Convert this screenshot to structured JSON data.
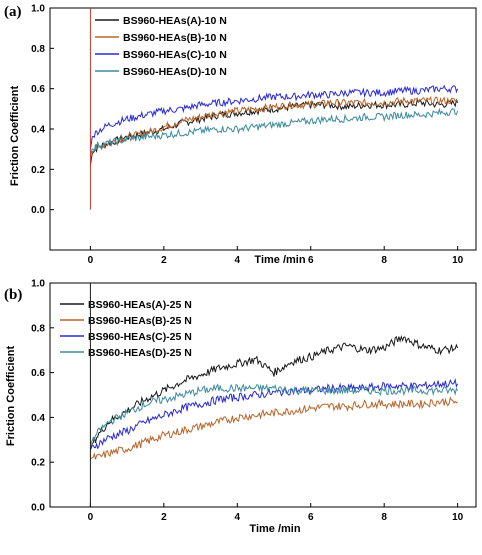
{
  "chart_data": [
    {
      "type": "line",
      "panel_label": "(a)",
      "xlabel": "Time /min",
      "ylabel": "Friction Coefficient",
      "xlim": [
        -1.1,
        10.5
      ],
      "ylim": [
        -0.2,
        1.0
      ],
      "xticks": [
        0,
        2,
        4,
        6,
        8,
        10
      ],
      "yticks": [
        0.0,
        0.2,
        0.4,
        0.6,
        0.8,
        1.0
      ],
      "legend_position": "top-center",
      "series": [
        {
          "name": "BS960-HEAs(A)-10 N",
          "color": "#1a1a1a",
          "x": [
            0,
            0.05,
            0.2,
            0.5,
            1,
            1.5,
            2,
            2.5,
            3,
            3.5,
            4,
            4.5,
            5,
            5.5,
            6,
            6.5,
            7,
            7.5,
            8,
            8.5,
            9,
            9.5,
            10
          ],
          "y": [
            0.22,
            0.28,
            0.31,
            0.33,
            0.36,
            0.38,
            0.4,
            0.43,
            0.45,
            0.47,
            0.48,
            0.49,
            0.5,
            0.51,
            0.52,
            0.52,
            0.51,
            0.52,
            0.52,
            0.52,
            0.53,
            0.52,
            0.53
          ]
        },
        {
          "name": "BS960-HEAs(B)-10 N",
          "color": "#b8652a",
          "x": [
            0,
            0.05,
            0.2,
            0.5,
            1,
            1.5,
            2,
            2.5,
            3,
            3.5,
            4,
            4.5,
            5,
            5.5,
            6,
            6.5,
            7,
            7.5,
            8,
            8.5,
            9,
            9.5,
            10
          ],
          "y": [
            0.25,
            0.29,
            0.31,
            0.33,
            0.36,
            0.38,
            0.41,
            0.44,
            0.46,
            0.48,
            0.49,
            0.5,
            0.51,
            0.52,
            0.52,
            0.53,
            0.53,
            0.53,
            0.53,
            0.54,
            0.54,
            0.54,
            0.54
          ]
        },
        {
          "name": "BS960-HEAs(C)-10 N",
          "color": "#2a2ad6",
          "x": [
            0,
            0.05,
            0.2,
            0.5,
            1,
            1.5,
            2,
            2.5,
            3,
            3.5,
            4,
            4.5,
            5,
            5.5,
            6,
            6.5,
            7,
            7.5,
            8,
            8.5,
            9,
            9.5,
            10
          ],
          "y": [
            0.3,
            0.36,
            0.39,
            0.42,
            0.45,
            0.47,
            0.49,
            0.5,
            0.52,
            0.53,
            0.54,
            0.55,
            0.56,
            0.56,
            0.57,
            0.57,
            0.58,
            0.58,
            0.58,
            0.59,
            0.59,
            0.6,
            0.6
          ]
        },
        {
          "name": "BS960-HEAs(D)-10 N",
          "color": "#3d8a9e",
          "x": [
            0,
            0.05,
            0.2,
            0.5,
            1,
            1.5,
            2,
            2.5,
            3,
            3.5,
            4,
            4.5,
            5,
            5.5,
            6,
            6.5,
            7,
            7.5,
            8,
            8.5,
            9,
            9.5,
            10
          ],
          "y": [
            0.28,
            0.3,
            0.32,
            0.33,
            0.35,
            0.36,
            0.37,
            0.38,
            0.39,
            0.4,
            0.4,
            0.41,
            0.42,
            0.43,
            0.44,
            0.45,
            0.45,
            0.46,
            0.46,
            0.47,
            0.47,
            0.48,
            0.49
          ]
        }
      ]
    },
    {
      "type": "line",
      "panel_label": "(b)",
      "xlabel": "Time /min",
      "ylabel": "Friction Coefficient",
      "xlim": [
        -1.1,
        10.5
      ],
      "ylim": [
        0.0,
        1.0
      ],
      "xticks": [
        0,
        2,
        4,
        6,
        8,
        10
      ],
      "yticks": [
        0.0,
        0.2,
        0.4,
        0.6,
        0.8,
        1.0
      ],
      "legend_position": "top-left",
      "series": [
        {
          "name": "BS960-HEAs(A)-25 N",
          "color": "#1a1a1a",
          "x": [
            0,
            0.05,
            0.2,
            0.5,
            1,
            1.5,
            2,
            2.5,
            3,
            3.5,
            4,
            4.5,
            5,
            5.5,
            6,
            6.5,
            7,
            7.5,
            8,
            8.5,
            9,
            9.5,
            10
          ],
          "y": [
            0.25,
            0.28,
            0.32,
            0.38,
            0.43,
            0.48,
            0.52,
            0.56,
            0.59,
            0.62,
            0.64,
            0.66,
            0.6,
            0.65,
            0.67,
            0.7,
            0.72,
            0.7,
            0.71,
            0.76,
            0.72,
            0.7,
            0.71
          ]
        },
        {
          "name": "BS960-HEAs(B)-25 N",
          "color": "#b8652a",
          "x": [
            0,
            0.05,
            0.2,
            0.5,
            1,
            1.5,
            2,
            2.5,
            3,
            3.5,
            4,
            4.5,
            5,
            5.5,
            6,
            6.5,
            7,
            7.5,
            8,
            8.5,
            9,
            9.5,
            10
          ],
          "y": [
            0.22,
            0.22,
            0.22,
            0.24,
            0.26,
            0.29,
            0.32,
            0.34,
            0.36,
            0.38,
            0.4,
            0.41,
            0.42,
            0.43,
            0.44,
            0.45,
            0.45,
            0.46,
            0.46,
            0.46,
            0.46,
            0.47,
            0.47
          ]
        },
        {
          "name": "BS960-HEAs(C)-25 N",
          "color": "#2a2ad6",
          "x": [
            0,
            0.05,
            0.2,
            0.5,
            1,
            1.5,
            2,
            2.5,
            3,
            3.5,
            4,
            4.5,
            5,
            5.5,
            6,
            6.5,
            7,
            7.5,
            8,
            8.5,
            9,
            9.5,
            10
          ],
          "y": [
            0.26,
            0.27,
            0.28,
            0.31,
            0.34,
            0.38,
            0.41,
            0.44,
            0.46,
            0.48,
            0.49,
            0.5,
            0.51,
            0.52,
            0.52,
            0.53,
            0.53,
            0.53,
            0.54,
            0.54,
            0.54,
            0.55,
            0.55
          ]
        },
        {
          "name": "BS960-HEAs(D)-25 N",
          "color": "#3d8a9e",
          "x": [
            0,
            0.05,
            0.2,
            0.5,
            1,
            1.5,
            2,
            2.5,
            3,
            3.5,
            4,
            4.5,
            5,
            5.5,
            6,
            6.5,
            7,
            7.5,
            8,
            8.5,
            9,
            9.5,
            10
          ],
          "y": [
            0.28,
            0.3,
            0.33,
            0.38,
            0.42,
            0.46,
            0.48,
            0.5,
            0.52,
            0.53,
            0.53,
            0.53,
            0.53,
            0.52,
            0.52,
            0.52,
            0.52,
            0.52,
            0.52,
            0.52,
            0.52,
            0.52,
            0.52
          ]
        }
      ]
    }
  ]
}
